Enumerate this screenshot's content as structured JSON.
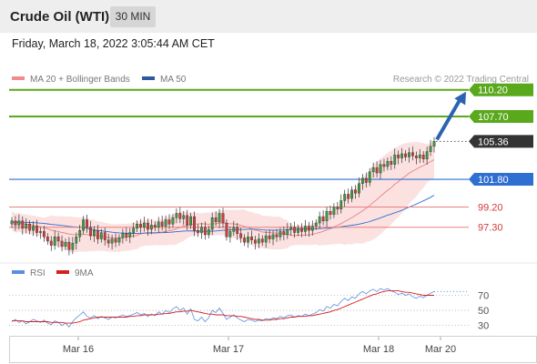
{
  "header": {
    "title": "Crude Oil (WTI)",
    "timeframe": "30 MIN"
  },
  "timestamp": "Friday, March 18, 2022 3:05:44 AM CET",
  "colors": {
    "support": "#e88080",
    "resistance": "#5aa81c",
    "pivot": "#2f6fd1",
    "ma50": "#2f6fd1",
    "ma20": "#e88080",
    "bollinger_fill": "#fbdcdc",
    "candle_up": "#3b9c3b",
    "candle_down": "#d23c3c",
    "current": "#333333",
    "arrow": "#2a64b0",
    "rsi": "#5b8ee0",
    "rsi_ma": "#d42020"
  },
  "chart_data": [
    {
      "type": "candlestick",
      "legend": [
        {
          "name": "MA 20 + Bollinger Bands",
          "color": "#f28c8c"
        },
        {
          "name": "MA 50",
          "color": "#2c5aa0"
        }
      ],
      "credit": "Research © 2022 Trading Central",
      "x_ticks": [
        "Mar 16",
        "Mar 17",
        "Mar 18",
        "Mar 20"
      ],
      "ylim": [
        94.2,
        111.8
      ],
      "levels": [
        {
          "value": 110.2,
          "label": "110.20",
          "kind": "resistance"
        },
        {
          "value": 107.7,
          "label": "107.70",
          "kind": "resistance"
        },
        {
          "value": 105.36,
          "label": "105.36",
          "kind": "current"
        },
        {
          "value": 101.8,
          "label": "101.80",
          "kind": "pivot"
        },
        {
          "value": 99.2,
          "label": "99.20",
          "kind": "support"
        },
        {
          "value": 97.3,
          "label": "97.30",
          "kind": "support"
        }
      ],
      "arrow": {
        "from": 105.36,
        "to": 110.2
      },
      "closes": [
        97.9,
        97.5,
        97.9,
        97.2,
        97.6,
        97.0,
        97.4,
        96.8,
        96.9,
        96.4,
        96.0,
        95.6,
        96.4,
        96.0,
        95.5,
        95.9,
        95.2,
        95.8,
        96.4,
        97.0,
        98.0,
        97.3,
        96.5,
        97.0,
        96.2,
        96.8,
        96.1,
        95.8,
        96.2,
        95.9,
        96.3,
        96.7,
        96.4,
        96.8,
        97.2,
        97.6,
        97.3,
        97.7,
        97.1,
        97.5,
        97.3,
        97.8,
        97.4,
        98.0,
        97.6,
        98.2,
        98.6,
        98.1,
        98.4,
        97.5,
        98.3,
        97.0,
        96.8,
        97.3,
        96.6,
        97.1,
        98.2,
        97.8,
        98.6,
        97.7,
        96.4,
        96.9,
        97.3,
        96.7,
        96.3,
        95.9,
        96.4,
        96.1,
        95.8,
        96.2,
        95.9,
        96.5,
        96.2,
        96.6,
        96.4,
        96.9,
        96.6,
        97.1,
        97.3,
        96.8,
        97.2,
        96.9,
        97.4,
        97.0,
        97.4,
        97.7,
        98.3,
        97.9,
        98.8,
        98.5,
        99.2,
        99.0,
        99.8,
        100.4,
        100.0,
        100.8,
        100.5,
        101.4,
        101.9,
        101.5,
        102.5,
        102.9,
        102.4,
        103.2,
        103.0,
        103.5,
        103.2,
        104.1,
        103.8,
        104.2,
        103.9,
        104.3,
        104.0,
        103.8,
        104.1,
        103.7,
        104.4,
        104.9,
        105.36
      ]
    },
    {
      "type": "line",
      "legend": [
        {
          "name": "RSI",
          "color": "#5b8ee0"
        },
        {
          "name": "9MA",
          "color": "#d42020"
        }
      ],
      "y_ticks": [
        70,
        50,
        30
      ],
      "ylim": [
        15,
        90
      ],
      "series": [
        {
          "name": "RSI",
          "values": [
            35,
            38,
            34,
            36,
            32,
            35,
            38,
            36,
            34,
            37,
            33,
            31,
            36,
            34,
            30,
            33,
            28,
            35,
            40,
            44,
            48,
            42,
            40,
            43,
            39,
            42,
            40,
            38,
            41,
            40,
            42,
            44,
            42,
            43,
            45,
            47,
            44,
            46,
            42,
            45,
            43,
            48,
            45,
            50,
            47,
            52,
            55,
            50,
            53,
            45,
            52,
            38,
            36,
            41,
            35,
            40,
            50,
            47,
            53,
            46,
            38,
            41,
            44,
            40,
            37,
            35,
            38,
            37,
            35,
            37,
            36,
            39,
            38,
            40,
            39,
            42,
            40,
            43,
            44,
            41,
            43,
            42,
            45,
            43,
            45,
            47,
            51,
            49,
            55,
            53,
            58,
            56,
            62,
            66,
            63,
            68,
            66,
            72,
            75,
            72,
            76,
            78,
            75,
            79,
            77,
            79,
            76,
            74,
            71,
            73,
            70,
            72,
            68,
            66,
            69,
            67,
            70,
            73,
            75
          ]
        },
        {
          "name": "9MA",
          "values": [
            36,
            36,
            36,
            36,
            35,
            35,
            35,
            35,
            35,
            35,
            35,
            34,
            34,
            34,
            34,
            33,
            33,
            33,
            34,
            35,
            37,
            38,
            39,
            40,
            41,
            41,
            41,
            41,
            41,
            41,
            41,
            41,
            41,
            42,
            42,
            43,
            43,
            44,
            44,
            44,
            44,
            45,
            45,
            46,
            46,
            47,
            48,
            48,
            49,
            49,
            50,
            49,
            48,
            47,
            46,
            45,
            45,
            44,
            44,
            44,
            43,
            43,
            43,
            42,
            42,
            41,
            40,
            39,
            38,
            38,
            37,
            37,
            37,
            38,
            38,
            39,
            39,
            40,
            41,
            41,
            42,
            42,
            42,
            43,
            43,
            44,
            45,
            46,
            47,
            48,
            50,
            51,
            53,
            55,
            57,
            59,
            61,
            63,
            65,
            67,
            69,
            71,
            72,
            74,
            75,
            76,
            76,
            76,
            76,
            75,
            74,
            74,
            73,
            72,
            71,
            70,
            70,
            70,
            70
          ]
        }
      ]
    }
  ]
}
